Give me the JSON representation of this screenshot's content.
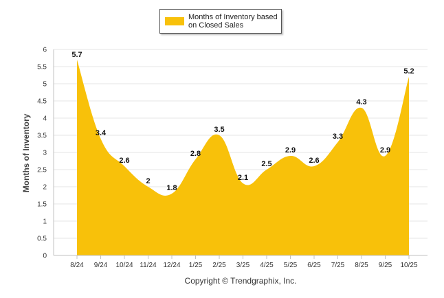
{
  "chart_data": {
    "type": "area",
    "series": [
      {
        "name": "Months of Inventory based on Closed Sales",
        "values": [
          5.7,
          3.4,
          2.6,
          2,
          1.8,
          2.8,
          3.5,
          2.1,
          2.5,
          2.9,
          2.6,
          3.3,
          4.3,
          2.9,
          5.2
        ],
        "value_labels": [
          "5.7",
          "3.4",
          "2.6",
          "2",
          "1.8",
          "2.8",
          "3.5",
          "2.1",
          "2.5",
          "2.9",
          "2.6",
          "3.3",
          "4.3",
          "2.9",
          "5.2"
        ]
      }
    ],
    "categories": [
      "8/24",
      "9/24",
      "10/24",
      "11/24",
      "12/24",
      "1/25",
      "2/25",
      "3/25",
      "4/25",
      "5/25",
      "6/25",
      "7/25",
      "8/25",
      "9/25",
      "10/25"
    ],
    "ylabel": "Months of Inventory",
    "xlabel": "",
    "ylim": [
      0,
      6
    ],
    "yticks": [
      0,
      0.5,
      1,
      1.5,
      2,
      2.5,
      3,
      3.5,
      4,
      4.5,
      5,
      5.5,
      6
    ],
    "ytick_labels": [
      "0",
      "0.5",
      "1",
      "1.5",
      "2",
      "2.5",
      "3",
      "3.5",
      "4",
      "4.5",
      "5",
      "5.5",
      "6"
    ],
    "grid": true,
    "legend": "top-center",
    "copyright": "Copyright © Trendgraphix, Inc."
  },
  "colors": {
    "fill": "#F8C10A",
    "grid": "#E4E4E4",
    "axis": "#C0C0C0"
  }
}
